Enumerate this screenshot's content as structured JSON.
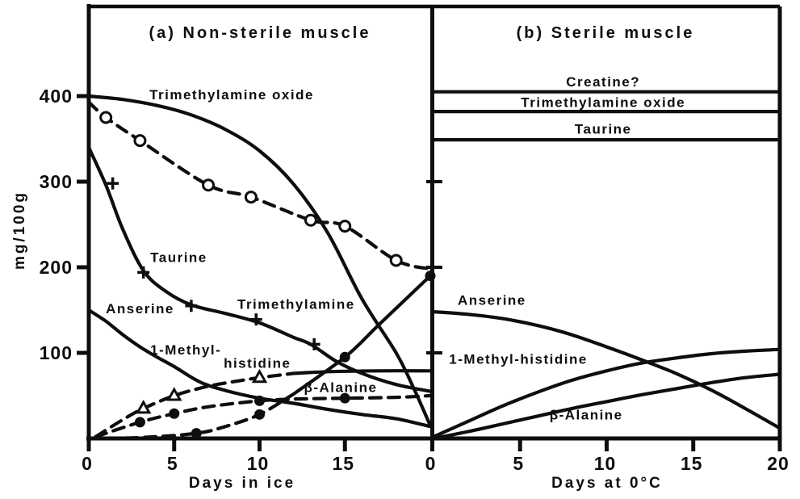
{
  "figure": {
    "ink_color": "#0e0e0e",
    "background_color": "#ffffff",
    "y_axis": {
      "label": "mg/100g",
      "ticks": [
        {
          "value": 100,
          "label": "100"
        },
        {
          "value": 200,
          "label": "200"
        },
        {
          "value": 300,
          "label": "300"
        },
        {
          "value": 400,
          "label": "400"
        }
      ]
    }
  },
  "chart_data": [
    {
      "type": "line",
      "panel": "a",
      "title": "(a) Non-sterile muscle",
      "xlabel": "Days in ice",
      "ylabel": "mg/100g",
      "xlim": [
        0,
        20
      ],
      "ylim": [
        0,
        430
      ],
      "grid": false,
      "legend": "labels-on-curves",
      "x_ticks": [
        {
          "value": 0,
          "label": "0"
        },
        {
          "value": 5,
          "label": "5"
        },
        {
          "value": 10,
          "label": "10"
        },
        {
          "value": 15,
          "label": "15"
        }
      ],
      "series": [
        {
          "name": "Trimethylamine oxide",
          "style": "solid",
          "marker": "none",
          "points": [
            [
              0,
              400
            ],
            [
              2,
              396
            ],
            [
              4,
              389
            ],
            [
              6,
              378
            ],
            [
              8,
              361
            ],
            [
              10,
              336
            ],
            [
              12,
              297
            ],
            [
              14,
              240
            ],
            [
              16,
              163
            ],
            [
              18,
              100
            ],
            [
              19,
              60
            ],
            [
              20,
              15
            ]
          ]
        },
        {
          "name": "Trimethylamine oxide (data)",
          "style": "dashed",
          "marker": "circle-open",
          "points": [
            [
              0,
              393
            ],
            [
              1,
              375
            ],
            [
              3,
              348
            ],
            [
              7,
              296
            ],
            [
              9.5,
              282
            ],
            [
              13,
              255
            ],
            [
              15,
              248
            ],
            [
              18,
              208
            ],
            [
              20,
              198
            ]
          ],
          "marker_points": [
            [
              1,
              375
            ],
            [
              3,
              348
            ],
            [
              7,
              296
            ],
            [
              9.5,
              282
            ],
            [
              13,
              255
            ],
            [
              15,
              248
            ],
            [
              18,
              208
            ]
          ]
        },
        {
          "name": "Taurine",
          "style": "solid",
          "marker": "plus",
          "points": [
            [
              0,
              340
            ],
            [
              1,
              296
            ],
            [
              2,
              244
            ],
            [
              3.2,
              196
            ],
            [
              4.5,
              172
            ],
            [
              6,
              156
            ],
            [
              8,
              146
            ],
            [
              10,
              135
            ],
            [
              12,
              118
            ],
            [
              13,
              110
            ],
            [
              14.5,
              90
            ],
            [
              16,
              76
            ],
            [
              18,
              63
            ],
            [
              20,
              55
            ]
          ],
          "marker_points": [
            [
              1.4,
              298
            ],
            [
              3.2,
              194
            ],
            [
              6,
              155
            ],
            [
              9.8,
              139
            ],
            [
              13.2,
              110
            ]
          ]
        },
        {
          "name": "Anserine",
          "style": "solid",
          "marker": "none",
          "points": [
            [
              0,
              150
            ],
            [
              1,
              137
            ],
            [
              2,
              121
            ],
            [
              3,
              107
            ],
            [
              4,
              95
            ],
            [
              5,
              84
            ],
            [
              6.5,
              66
            ],
            [
              8,
              56
            ],
            [
              10,
              47
            ],
            [
              12,
              41
            ],
            [
              14,
              34
            ],
            [
              16,
              28
            ],
            [
              18,
              23
            ],
            [
              20,
              14
            ]
          ]
        },
        {
          "name": "1-Methyl-histidine",
          "style": "dashed",
          "dash_until_x": 12,
          "marker": "triangle-open",
          "points": [
            [
              0.4,
              2
            ],
            [
              2,
              22
            ],
            [
              3.2,
              35
            ],
            [
              5,
              50
            ],
            [
              7,
              61
            ],
            [
              9,
              68
            ],
            [
              10,
              71
            ],
            [
              12,
              76
            ],
            [
              14,
              78
            ],
            [
              17,
              79
            ],
            [
              20,
              79
            ]
          ],
          "marker_points": [
            [
              3.2,
              35
            ],
            [
              5,
              50
            ],
            [
              10,
              71
            ]
          ]
        },
        {
          "name": "β-Alanine",
          "style": "dashed",
          "marker": "circle-filled",
          "points": [
            [
              0.4,
              2
            ],
            [
              3,
              19
            ],
            [
              5,
              29
            ],
            [
              7,
              37
            ],
            [
              10,
              44
            ],
            [
              12,
              46
            ],
            [
              15,
              47
            ],
            [
              18,
              48
            ],
            [
              20,
              50
            ]
          ],
          "marker_points": [
            [
              3,
              19
            ],
            [
              5,
              29
            ],
            [
              10,
              44
            ],
            [
              15,
              47
            ]
          ]
        },
        {
          "name": "Trimethylamine",
          "style": "dashed",
          "dash_until_x": 11,
          "marker": "circle-filled",
          "points": [
            [
              0,
              0
            ],
            [
              3,
              1
            ],
            [
              6.3,
              6
            ],
            [
              8,
              14
            ],
            [
              10,
              28
            ],
            [
              12,
              52
            ],
            [
              15,
              95
            ],
            [
              17,
              133
            ],
            [
              20,
              190
            ]
          ],
          "marker_points": [
            [
              6.3,
              6
            ],
            [
              10,
              28
            ],
            [
              15,
              95
            ],
            [
              20,
              190
            ]
          ]
        }
      ],
      "labels": [
        {
          "text": "Trimethylamine oxide",
          "x": 3.55,
          "y": 402,
          "anchor": "start"
        },
        {
          "text": "Taurine",
          "x": 3.6,
          "y": 212,
          "anchor": "start"
        },
        {
          "text": "Anserine",
          "x": 1.0,
          "y": 152,
          "anchor": "start"
        },
        {
          "text": "Trimethylamine",
          "x": 8.7,
          "y": 157,
          "anchor": "start"
        },
        {
          "text": "1-Methyl-",
          "x": 3.6,
          "y": 104,
          "anchor": "start"
        },
        {
          "text": "histidine",
          "x": 7.9,
          "y": 88,
          "anchor": "start"
        },
        {
          "text": "β-Alanine",
          "x": 12.6,
          "y": 60,
          "anchor": "start"
        }
      ]
    },
    {
      "type": "line",
      "panel": "b",
      "title": "(b) Sterile muscle",
      "xlabel": "Days at 0°C",
      "ylabel": "mg/100g",
      "xlim": [
        0,
        20
      ],
      "ylim": [
        0,
        430
      ],
      "grid": false,
      "legend": "labels-on-curves",
      "x_ticks": [
        {
          "value": 0,
          "label": "0"
        },
        {
          "value": 5,
          "label": "5"
        },
        {
          "value": 10,
          "label": "10"
        },
        {
          "value": 15,
          "label": "15"
        },
        {
          "value": 20,
          "label": "20"
        }
      ],
      "series": [
        {
          "name": "Creatine?",
          "style": "solid",
          "marker": "none",
          "points": [
            [
              0,
              405
            ],
            [
              20,
              405
            ]
          ]
        },
        {
          "name": "Trimethylamine oxide",
          "style": "solid",
          "marker": "none",
          "points": [
            [
              0,
              382
            ],
            [
              20,
              382
            ]
          ]
        },
        {
          "name": "Taurine",
          "style": "solid",
          "marker": "none",
          "points": [
            [
              0,
              349
            ],
            [
              20,
              349
            ]
          ]
        },
        {
          "name": "Anserine",
          "style": "solid",
          "marker": "none",
          "points": [
            [
              0,
              148
            ],
            [
              2,
              145
            ],
            [
              4,
              140
            ],
            [
              6,
              132
            ],
            [
              8,
              121
            ],
            [
              10,
              107
            ],
            [
              12,
              92
            ],
            [
              14,
              76
            ],
            [
              16,
              57
            ],
            [
              18,
              35
            ],
            [
              20,
              12
            ]
          ]
        },
        {
          "name": "1-Methyl-histidine",
          "style": "solid",
          "marker": "none",
          "points": [
            [
              0,
              2
            ],
            [
              2,
              20
            ],
            [
              4,
              38
            ],
            [
              6,
              54
            ],
            [
              8,
              68
            ],
            [
              10,
              79
            ],
            [
              12,
              88
            ],
            [
              14,
              94
            ],
            [
              16,
              99
            ],
            [
              18,
              102
            ],
            [
              20,
              104
            ]
          ]
        },
        {
          "name": "β-Alanine",
          "style": "solid",
          "marker": "none",
          "points": [
            [
              0,
              0
            ],
            [
              2,
              8
            ],
            [
              4,
              17
            ],
            [
              6,
              26
            ],
            [
              8,
              35
            ],
            [
              10,
              43
            ],
            [
              12,
              51
            ],
            [
              14,
              58
            ],
            [
              16,
              65
            ],
            [
              18,
              71
            ],
            [
              20,
              75
            ]
          ]
        }
      ],
      "labels": [
        {
          "text": "Creatine?",
          "x": 9.8,
          "y": 417,
          "anchor": "middle",
          "size": 16
        },
        {
          "text": "Trimethylamine oxide",
          "x": 9.8,
          "y": 393,
          "anchor": "middle",
          "size": 16
        },
        {
          "text": "Taurine",
          "x": 9.8,
          "y": 362,
          "anchor": "middle",
          "size": 16
        },
        {
          "text": "Anserine",
          "x": 1.4,
          "y": 162,
          "anchor": "start"
        },
        {
          "text": "1-Methyl-histidine",
          "x": 0.9,
          "y": 93,
          "anchor": "start"
        },
        {
          "text": "β-Alanine",
          "x": 6.7,
          "y": 28,
          "anchor": "start"
        }
      ]
    }
  ]
}
